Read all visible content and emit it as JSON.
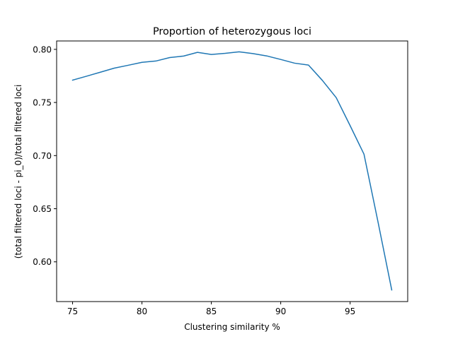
{
  "chart_data": {
    "type": "line",
    "title": "Proportion of heterozygous loci",
    "xlabel": "Clustering similarity %",
    "ylabel": "(total filtered loci - pi_0)/total filtered loci",
    "xlim": [
      73.85,
      99.15
    ],
    "ylim": [
      0.5626,
      0.8079
    ],
    "xticks": [
      75,
      80,
      85,
      90,
      95
    ],
    "xtick_labels": [
      "75",
      "80",
      "85",
      "90",
      "95"
    ],
    "yticks": [
      0.6,
      0.65,
      0.7,
      0.75,
      0.8
    ],
    "ytick_labels": [
      "0.60",
      "0.65",
      "0.70",
      "0.75",
      "0.80"
    ],
    "grid": false,
    "legend": "none",
    "line_color": "#1f77b4",
    "series": [
      {
        "x": [
          75,
          76,
          77,
          78,
          79,
          80,
          81,
          82,
          83,
          84,
          85,
          86,
          87,
          88,
          89,
          90,
          91,
          92,
          93,
          94,
          95,
          96,
          97,
          98
        ],
        "y": [
          0.771,
          0.7747,
          0.7785,
          0.7823,
          0.785,
          0.7878,
          0.789,
          0.7923,
          0.7937,
          0.7972,
          0.7952,
          0.7963,
          0.7977,
          0.796,
          0.7938,
          0.7905,
          0.787,
          0.7852,
          0.7708,
          0.7545,
          0.7282,
          0.7013,
          0.6382,
          0.5735
        ]
      }
    ]
  }
}
